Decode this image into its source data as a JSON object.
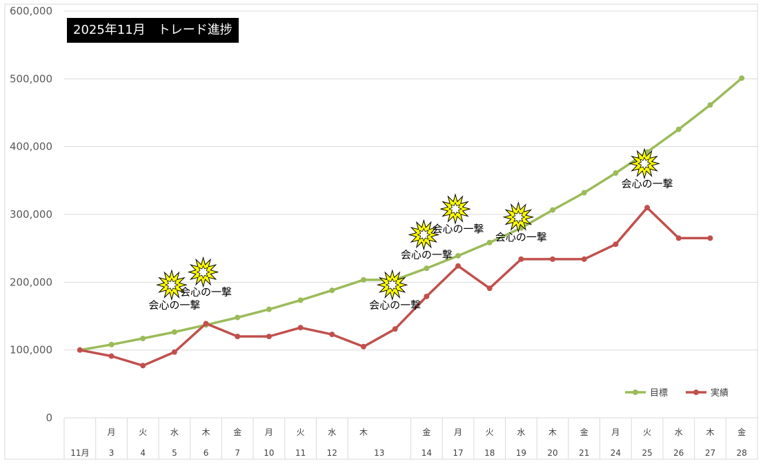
{
  "chart_data": {
    "type": "line",
    "title": "2025年11月　トレード進捗",
    "xlabel": "",
    "ylabel": "",
    "ylim": [
      0,
      600000
    ],
    "yticks": [
      "0",
      "100,000",
      "200,000",
      "300,000",
      "400,000",
      "500,000",
      "600,000"
    ],
    "grid": true,
    "legend_position": "bottom-right",
    "categories": [
      {
        "weekday": "",
        "day": "11月"
      },
      {
        "weekday": "月",
        "day": "3"
      },
      {
        "weekday": "火",
        "day": "4"
      },
      {
        "weekday": "水",
        "day": "5"
      },
      {
        "weekday": "木",
        "day": "6"
      },
      {
        "weekday": "金",
        "day": "7"
      },
      {
        "weekday": "月",
        "day": "10"
      },
      {
        "weekday": "火",
        "day": "11"
      },
      {
        "weekday": "水",
        "day": "12"
      },
      {
        "weekday": "木",
        "day": "13"
      },
      {
        "weekday": "",
        "day": ""
      },
      {
        "weekday": "金",
        "day": "14"
      },
      {
        "weekday": "月",
        "day": "17"
      },
      {
        "weekday": "火",
        "day": "18"
      },
      {
        "weekday": "水",
        "day": "19"
      },
      {
        "weekday": "木",
        "day": "20"
      },
      {
        "weekday": "金",
        "day": "21"
      },
      {
        "weekday": "月",
        "day": "24"
      },
      {
        "weekday": "火",
        "day": "25"
      },
      {
        "weekday": "水",
        "day": "26"
      },
      {
        "weekday": "木",
        "day": "27"
      },
      {
        "weekday": "金",
        "day": "28"
      }
    ],
    "series": [
      {
        "name": "目標",
        "color": "#9bbb59",
        "values": [
          100000,
          108000,
          117000,
          126500,
          137000,
          148000,
          160000,
          173500,
          188000,
          203500,
          203500,
          220500,
          239000,
          258500,
          280000,
          306500,
          332000,
          361000,
          392000,
          425500,
          461500,
          501000
        ]
      },
      {
        "name": "実績",
        "color": "#c0504d",
        "values": [
          100000,
          91000,
          77000,
          97000,
          139000,
          120000,
          120000,
          133000,
          123000,
          105000,
          131000,
          179000,
          224000,
          191000,
          234000,
          234000,
          234000,
          256000,
          310000,
          265000,
          265000,
          null
        ]
      }
    ],
    "annotations": [
      {
        "text": "会心の一撃",
        "category_index": 3,
        "value": 196000,
        "icon": "starburst-icon"
      },
      {
        "text": "会心の一撃",
        "category_index": 4,
        "value": 215000,
        "icon": "starburst-icon"
      },
      {
        "text": "会心の一撃",
        "category_index": 10,
        "value": 196000,
        "icon": "starburst-icon"
      },
      {
        "text": "会心の一撃",
        "category_index": 11,
        "value": 270000,
        "icon": "starburst-icon"
      },
      {
        "text": "会心の一撃",
        "category_index": 12,
        "value": 308000,
        "icon": "starburst-icon"
      },
      {
        "text": "会心の一撃",
        "category_index": 14,
        "value": 296000,
        "icon": "starburst-icon"
      },
      {
        "text": "会心の一撃",
        "category_index": 18,
        "value": 375000,
        "icon": "starburst-icon"
      }
    ]
  }
}
